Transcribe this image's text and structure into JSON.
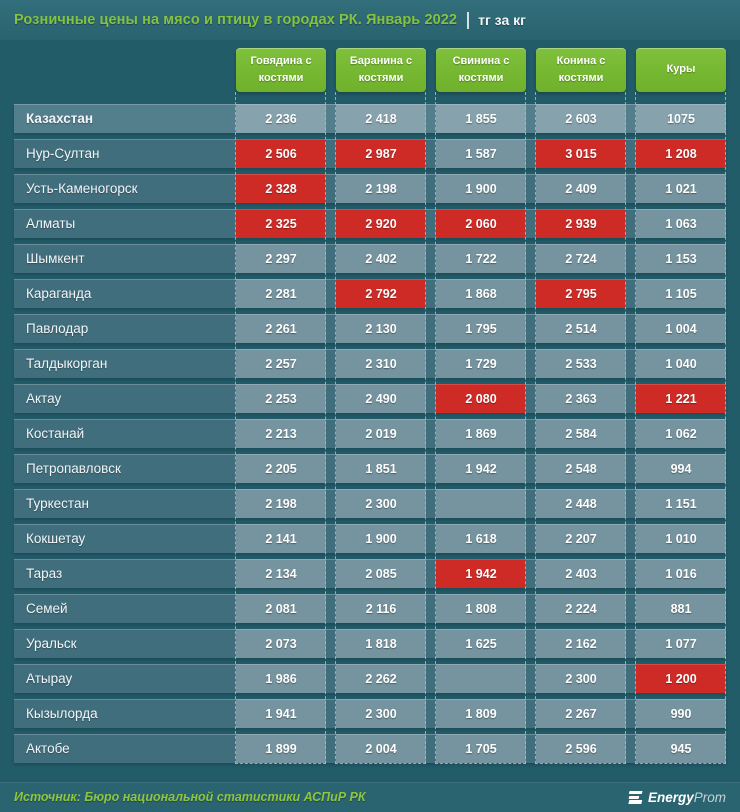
{
  "title": {
    "main": "Розничные цены на мясо и птицу в городах РК. Январь 2022",
    "unit": "тг за кг"
  },
  "table": {
    "columns": [
      "Говядина с костями",
      "Баранина с костями",
      "Свинина с костями",
      "Конина с костями",
      "Куры"
    ],
    "rows": [
      {
        "name": "Казахстан",
        "country": true,
        "cells": [
          {
            "v": "2 236",
            "hl": false
          },
          {
            "v": "2 418",
            "hl": false
          },
          {
            "v": "1 855",
            "hl": false
          },
          {
            "v": "2 603",
            "hl": false
          },
          {
            "v": "1075",
            "hl": false
          }
        ]
      },
      {
        "name": "Нур-Султан",
        "country": false,
        "cells": [
          {
            "v": "2 506",
            "hl": true
          },
          {
            "v": "2 987",
            "hl": true
          },
          {
            "v": "1 587",
            "hl": false
          },
          {
            "v": "3 015",
            "hl": true
          },
          {
            "v": "1 208",
            "hl": true
          }
        ]
      },
      {
        "name": "Усть-Каменогорск",
        "country": false,
        "cells": [
          {
            "v": "2 328",
            "hl": true
          },
          {
            "v": "2 198",
            "hl": false
          },
          {
            "v": "1 900",
            "hl": false
          },
          {
            "v": "2 409",
            "hl": false
          },
          {
            "v": "1 021",
            "hl": false
          }
        ]
      },
      {
        "name": "Алматы",
        "country": false,
        "cells": [
          {
            "v": "2 325",
            "hl": true
          },
          {
            "v": "2 920",
            "hl": true
          },
          {
            "v": "2 060",
            "hl": true
          },
          {
            "v": "2 939",
            "hl": true
          },
          {
            "v": "1 063",
            "hl": false
          }
        ]
      },
      {
        "name": "Шымкент",
        "country": false,
        "cells": [
          {
            "v": "2 297",
            "hl": false
          },
          {
            "v": "2 402",
            "hl": false
          },
          {
            "v": "1 722",
            "hl": false
          },
          {
            "v": "2 724",
            "hl": false
          },
          {
            "v": "1 153",
            "hl": false
          }
        ]
      },
      {
        "name": "Караганда",
        "country": false,
        "cells": [
          {
            "v": "2 281",
            "hl": false
          },
          {
            "v": "2 792",
            "hl": true
          },
          {
            "v": "1 868",
            "hl": false
          },
          {
            "v": "2 795",
            "hl": true
          },
          {
            "v": "1 105",
            "hl": false
          }
        ]
      },
      {
        "name": "Павлодар",
        "country": false,
        "cells": [
          {
            "v": "2 261",
            "hl": false
          },
          {
            "v": "2 130",
            "hl": false
          },
          {
            "v": "1 795",
            "hl": false
          },
          {
            "v": "2 514",
            "hl": false
          },
          {
            "v": "1 004",
            "hl": false
          }
        ]
      },
      {
        "name": "Талдыкорган",
        "country": false,
        "cells": [
          {
            "v": "2 257",
            "hl": false
          },
          {
            "v": "2 310",
            "hl": false
          },
          {
            "v": "1 729",
            "hl": false
          },
          {
            "v": "2 533",
            "hl": false
          },
          {
            "v": "1 040",
            "hl": false
          }
        ]
      },
      {
        "name": "Актау",
        "country": false,
        "cells": [
          {
            "v": "2 253",
            "hl": false
          },
          {
            "v": "2 490",
            "hl": false
          },
          {
            "v": "2 080",
            "hl": true
          },
          {
            "v": "2 363",
            "hl": false
          },
          {
            "v": "1 221",
            "hl": true
          }
        ]
      },
      {
        "name": "Костанай",
        "country": false,
        "cells": [
          {
            "v": "2 213",
            "hl": false
          },
          {
            "v": "2 019",
            "hl": false
          },
          {
            "v": "1 869",
            "hl": false
          },
          {
            "v": "2 584",
            "hl": false
          },
          {
            "v": "1 062",
            "hl": false
          }
        ]
      },
      {
        "name": "Петропавловск",
        "country": false,
        "cells": [
          {
            "v": "2 205",
            "hl": false
          },
          {
            "v": "1 851",
            "hl": false
          },
          {
            "v": "1 942",
            "hl": false
          },
          {
            "v": "2 548",
            "hl": false
          },
          {
            "v": "994",
            "hl": false
          }
        ]
      },
      {
        "name": "Туркестан",
        "country": false,
        "cells": [
          {
            "v": "2 198",
            "hl": false
          },
          {
            "v": "2 300",
            "hl": false
          },
          {
            "v": "",
            "hl": false
          },
          {
            "v": "2 448",
            "hl": false
          },
          {
            "v": "1 151",
            "hl": false
          }
        ]
      },
      {
        "name": "Кокшетау",
        "country": false,
        "cells": [
          {
            "v": "2 141",
            "hl": false
          },
          {
            "v": "1 900",
            "hl": false
          },
          {
            "v": "1 618",
            "hl": false
          },
          {
            "v": "2 207",
            "hl": false
          },
          {
            "v": "1 010",
            "hl": false
          }
        ]
      },
      {
        "name": "Тараз",
        "country": false,
        "cells": [
          {
            "v": "2 134",
            "hl": false
          },
          {
            "v": "2 085",
            "hl": false
          },
          {
            "v": "1 942",
            "hl": true
          },
          {
            "v": "2 403",
            "hl": false
          },
          {
            "v": "1 016",
            "hl": false
          }
        ]
      },
      {
        "name": "Семей",
        "country": false,
        "cells": [
          {
            "v": "2 081",
            "hl": false
          },
          {
            "v": "2 116",
            "hl": false
          },
          {
            "v": "1 808",
            "hl": false
          },
          {
            "v": "2 224",
            "hl": false
          },
          {
            "v": "881",
            "hl": false
          }
        ]
      },
      {
        "name": "Уральск",
        "country": false,
        "cells": [
          {
            "v": "2 073",
            "hl": false
          },
          {
            "v": "1 818",
            "hl": false
          },
          {
            "v": "1 625",
            "hl": false
          },
          {
            "v": "2 162",
            "hl": false
          },
          {
            "v": "1 077",
            "hl": false
          }
        ]
      },
      {
        "name": "Атырау",
        "country": false,
        "cells": [
          {
            "v": "1 986",
            "hl": false
          },
          {
            "v": "2 262",
            "hl": false
          },
          {
            "v": "",
            "hl": false
          },
          {
            "v": "2 300",
            "hl": false
          },
          {
            "v": "1 200",
            "hl": true
          }
        ]
      },
      {
        "name": "Кызылорда",
        "country": false,
        "cells": [
          {
            "v": "1 941",
            "hl": false
          },
          {
            "v": "2 300",
            "hl": false
          },
          {
            "v": "1 809",
            "hl": false
          },
          {
            "v": "2 267",
            "hl": false
          },
          {
            "v": "990",
            "hl": false
          }
        ]
      },
      {
        "name": "Актобе",
        "country": false,
        "cells": [
          {
            "v": "1 899",
            "hl": false
          },
          {
            "v": "2 004",
            "hl": false
          },
          {
            "v": "1 705",
            "hl": false
          },
          {
            "v": "2 596",
            "hl": false
          },
          {
            "v": "945",
            "hl": false
          }
        ]
      }
    ]
  },
  "footer": {
    "source": "Источник: Бюро национальной статистики АСПиР РК",
    "logo": {
      "bold": "Energy",
      "light": "Prom"
    }
  },
  "colors": {
    "accent_green": "#76b82a",
    "title_green": "#84c341",
    "highlight_red": "#ce2b27",
    "dash_green": "#a6d24f",
    "source_green": "#8dc63f",
    "page_teal": "#225c69",
    "cell_gray_blue": "#75949f"
  },
  "chart_data": {
    "type": "table",
    "title": "Розничные цены на мясо и птицу в городах РК. Январь 2022",
    "unit": "тг за кг",
    "columns": [
      "Говядина с костями",
      "Баранина с костями",
      "Свинина с костями",
      "Конина с костями",
      "Куры"
    ],
    "rows": [
      {
        "city": "Казахстан",
        "values": [
          2236,
          2418,
          1855,
          2603,
          1075
        ],
        "highlighted": [
          false,
          false,
          false,
          false,
          false
        ]
      },
      {
        "city": "Нур-Султан",
        "values": [
          2506,
          2987,
          1587,
          3015,
          1208
        ],
        "highlighted": [
          true,
          true,
          false,
          true,
          true
        ]
      },
      {
        "city": "Усть-Каменогорск",
        "values": [
          2328,
          2198,
          1900,
          2409,
          1021
        ],
        "highlighted": [
          true,
          false,
          false,
          false,
          false
        ]
      },
      {
        "city": "Алматы",
        "values": [
          2325,
          2920,
          2060,
          2939,
          1063
        ],
        "highlighted": [
          true,
          true,
          true,
          true,
          false
        ]
      },
      {
        "city": "Шымкент",
        "values": [
          2297,
          2402,
          1722,
          2724,
          1153
        ],
        "highlighted": [
          false,
          false,
          false,
          false,
          false
        ]
      },
      {
        "city": "Караганда",
        "values": [
          2281,
          2792,
          1868,
          2795,
          1105
        ],
        "highlighted": [
          false,
          true,
          false,
          true,
          false
        ]
      },
      {
        "city": "Павлодар",
        "values": [
          2261,
          2130,
          1795,
          2514,
          1004
        ],
        "highlighted": [
          false,
          false,
          false,
          false,
          false
        ]
      },
      {
        "city": "Талдыкорган",
        "values": [
          2257,
          2310,
          1729,
          2533,
          1040
        ],
        "highlighted": [
          false,
          false,
          false,
          false,
          false
        ]
      },
      {
        "city": "Актау",
        "values": [
          2253,
          2490,
          2080,
          2363,
          1221
        ],
        "highlighted": [
          false,
          false,
          true,
          false,
          true
        ]
      },
      {
        "city": "Костанай",
        "values": [
          2213,
          2019,
          1869,
          2584,
          1062
        ],
        "highlighted": [
          false,
          false,
          false,
          false,
          false
        ]
      },
      {
        "city": "Петропавловск",
        "values": [
          2205,
          1851,
          1942,
          2548,
          994
        ],
        "highlighted": [
          false,
          false,
          false,
          false,
          false
        ]
      },
      {
        "city": "Туркестан",
        "values": [
          2198,
          2300,
          null,
          2448,
          1151
        ],
        "highlighted": [
          false,
          false,
          false,
          false,
          false
        ]
      },
      {
        "city": "Кокшетау",
        "values": [
          2141,
          1900,
          1618,
          2207,
          1010
        ],
        "highlighted": [
          false,
          false,
          false,
          false,
          false
        ]
      },
      {
        "city": "Тараз",
        "values": [
          2134,
          2085,
          1942,
          2403,
          1016
        ],
        "highlighted": [
          false,
          false,
          true,
          false,
          false
        ]
      },
      {
        "city": "Семей",
        "values": [
          2081,
          2116,
          1808,
          2224,
          881
        ],
        "highlighted": [
          false,
          false,
          false,
          false,
          false
        ]
      },
      {
        "city": "Уральск",
        "values": [
          2073,
          1818,
          1625,
          2162,
          1077
        ],
        "highlighted": [
          false,
          false,
          false,
          false,
          false
        ]
      },
      {
        "city": "Атырау",
        "values": [
          1986,
          2262,
          null,
          2300,
          1200
        ],
        "highlighted": [
          false,
          false,
          false,
          false,
          true
        ]
      },
      {
        "city": "Кызылорда",
        "values": [
          1941,
          2300,
          1809,
          2267,
          990
        ],
        "highlighted": [
          false,
          false,
          false,
          false,
          false
        ]
      },
      {
        "city": "Актобе",
        "values": [
          1899,
          2004,
          1705,
          2596,
          945
        ],
        "highlighted": [
          false,
          false,
          false,
          false,
          false
        ]
      }
    ],
    "legend_note": "red cells mark highest prices",
    "grid": "dashed column frames",
    "source": "Бюро национальной статистики АСПиР РК"
  }
}
